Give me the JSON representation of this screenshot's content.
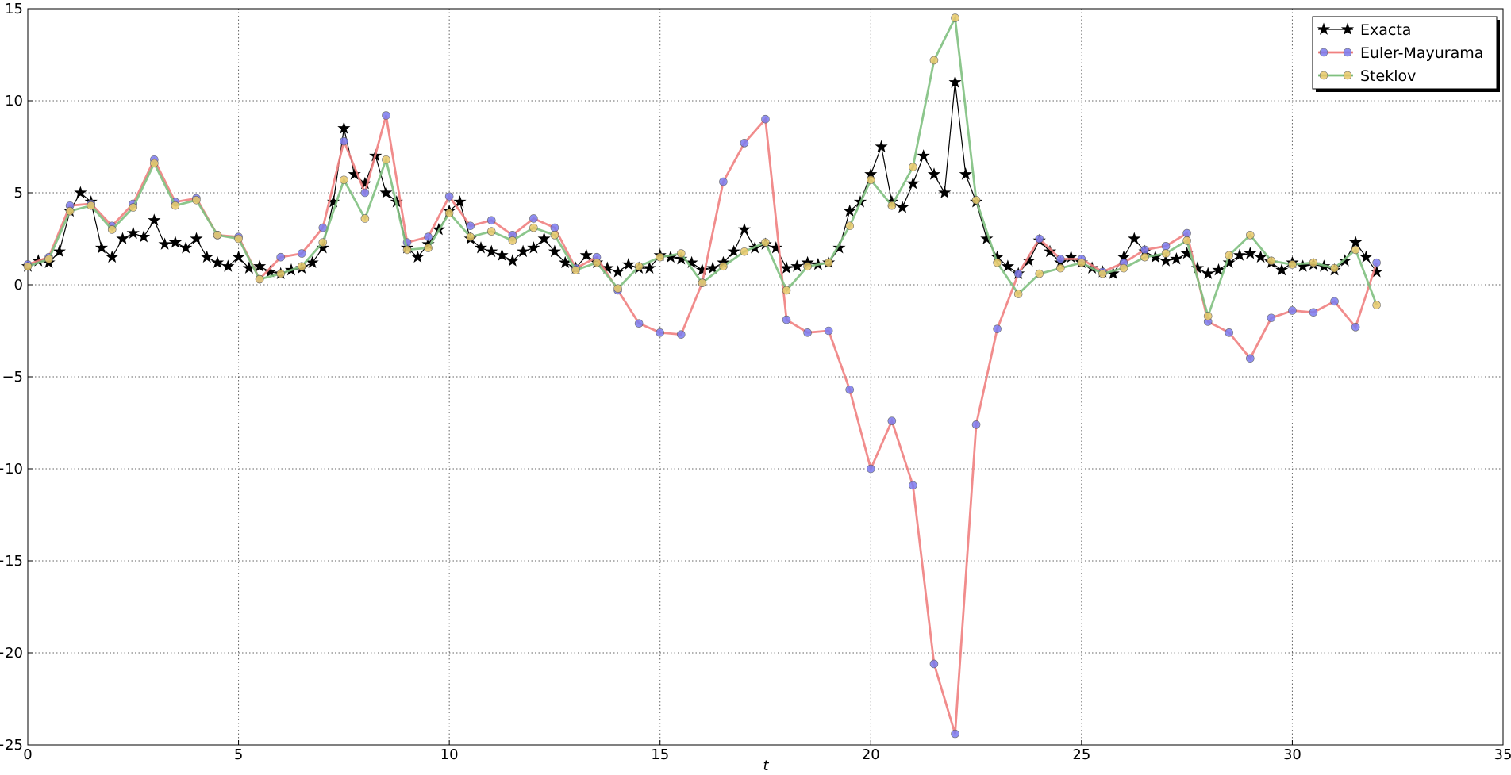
{
  "chart_data": {
    "type": "line",
    "x_label": "t",
    "xlim": [
      0,
      35
    ],
    "xticks": [
      0,
      5,
      10,
      15,
      20,
      25,
      30,
      35
    ],
    "ylim": [
      -25,
      15
    ],
    "yticks": [
      {
        "value": -25,
        "label": "−25"
      },
      {
        "value": -20,
        "label": "−20"
      },
      {
        "value": -15,
        "label": "−15"
      },
      {
        "value": -10,
        "label": "−10"
      },
      {
        "value": -5,
        "label": "−5"
      },
      0,
      5,
      10,
      15
    ],
    "grid": true,
    "legend": "upper right",
    "series": [
      {
        "name": "Exacta",
        "color": "#000000",
        "marker": "star",
        "marker_color": "#000000",
        "x": [
          0,
          0.25,
          0.5,
          0.75,
          1,
          1.25,
          1.5,
          1.75,
          2,
          2.25,
          2.5,
          2.75,
          3,
          3.25,
          3.5,
          3.75,
          4,
          4.25,
          4.5,
          4.75,
          5,
          5.25,
          5.5,
          5.75,
          6,
          6.25,
          6.5,
          6.75,
          7,
          7.25,
          7.5,
          7.75,
          8,
          8.25,
          8.5,
          8.75,
          9,
          9.25,
          9.5,
          9.75,
          10,
          10.25,
          10.5,
          10.75,
          11,
          11.25,
          11.5,
          11.75,
          12,
          12.25,
          12.5,
          12.75,
          13,
          13.25,
          13.5,
          13.75,
          14,
          14.25,
          14.5,
          14.75,
          15,
          15.25,
          15.5,
          15.75,
          16,
          16.25,
          16.5,
          16.75,
          17,
          17.25,
          17.5,
          17.75,
          18,
          18.25,
          18.5,
          18.75,
          19,
          19.25,
          19.5,
          19.75,
          20,
          20.25,
          20.5,
          20.75,
          21,
          21.25,
          21.5,
          21.75,
          22,
          22.25,
          22.5,
          22.75,
          23,
          23.25,
          23.5,
          23.75,
          24,
          24.25,
          24.5,
          24.75,
          25,
          25.25,
          25.5,
          25.75,
          26,
          26.25,
          26.5,
          26.75,
          27,
          27.25,
          27.5,
          27.75,
          28,
          28.25,
          28.5,
          28.75,
          29,
          29.25,
          29.5,
          29.75,
          30,
          30.25,
          30.5,
          30.75,
          31,
          31.25,
          31.5,
          31.75,
          32
        ],
        "values": [
          1.0,
          1.3,
          1.2,
          1.8,
          4.0,
          5.0,
          4.5,
          2.0,
          1.5,
          2.5,
          2.8,
          2.6,
          3.5,
          2.2,
          2.3,
          2.0,
          2.5,
          1.5,
          1.2,
          1.0,
          1.5,
          0.9,
          1.0,
          0.7,
          0.6,
          0.8,
          0.9,
          1.2,
          2.0,
          4.5,
          8.5,
          6.0,
          5.5,
          7.0,
          5.0,
          4.5,
          2.0,
          1.5,
          2.2,
          3.0,
          4.0,
          4.5,
          2.5,
          2.0,
          1.8,
          1.6,
          1.3,
          1.8,
          2.0,
          2.5,
          1.8,
          1.2,
          0.9,
          1.6,
          1.2,
          0.9,
          0.7,
          1.1,
          0.9,
          0.9,
          1.6,
          1.5,
          1.4,
          1.2,
          0.8,
          0.9,
          1.2,
          1.8,
          3.0,
          2.0,
          2.2,
          2.0,
          0.9,
          1.0,
          1.2,
          1.1,
          1.2,
          2.0,
          4.0,
          4.5,
          6.0,
          7.5,
          4.5,
          4.2,
          5.5,
          7.0,
          6.0,
          5.0,
          11.0,
          6.0,
          4.5,
          2.5,
          1.5,
          1.0,
          0.6,
          1.3,
          2.4,
          1.8,
          1.2,
          1.5,
          1.2,
          0.9,
          0.7,
          0.6,
          1.5,
          2.5,
          1.8,
          1.5,
          1.3,
          1.4,
          1.7,
          0.9,
          0.6,
          0.8,
          1.2,
          1.6,
          1.7,
          1.5,
          1.2,
          0.8,
          1.2,
          1.0,
          1.1,
          1.0,
          0.8,
          1.3,
          2.3,
          1.5,
          0.7
        ]
      },
      {
        "name": "Euler-Mayurama",
        "color": "#f08080",
        "marker": "circle",
        "marker_color": "#7b7bef",
        "x": [
          0,
          0.5,
          1,
          1.5,
          2,
          2.5,
          3,
          3.5,
          4,
          4.5,
          5,
          5.5,
          6,
          6.5,
          7,
          7.5,
          8,
          8.5,
          9,
          9.5,
          10,
          10.5,
          11,
          11.5,
          12,
          12.5,
          13,
          13.5,
          14,
          14.5,
          15,
          15.5,
          16,
          16.5,
          17,
          17.5,
          18,
          18.5,
          19,
          19.5,
          20,
          20.5,
          21,
          21.5,
          22,
          22.5,
          23,
          23.5,
          24,
          24.5,
          25,
          25.5,
          26,
          26.5,
          27,
          27.5,
          28,
          28.5,
          29,
          29.5,
          30,
          30.5,
          31,
          31.5,
          32
        ],
        "values": [
          1.1,
          1.5,
          4.3,
          4.4,
          3.2,
          4.4,
          6.8,
          4.5,
          4.7,
          2.7,
          2.6,
          0.3,
          1.5,
          1.7,
          3.1,
          7.8,
          5.0,
          9.2,
          2.3,
          2.6,
          4.8,
          3.2,
          3.5,
          2.7,
          3.6,
          3.1,
          0.9,
          1.5,
          -0.3,
          -2.1,
          -2.6,
          -2.7,
          0.1,
          5.6,
          7.7,
          9.0,
          -1.9,
          -2.6,
          -2.5,
          -5.7,
          -10.0,
          -7.4,
          -10.9,
          -20.6,
          -24.4,
          -7.6,
          -2.4,
          0.6,
          2.5,
          1.4,
          1.4,
          0.7,
          1.2,
          1.9,
          2.1,
          2.8,
          -2.0,
          -2.6,
          -4.0,
          -1.8,
          -1.4,
          -1.5,
          -0.9,
          -2.3,
          1.2
        ]
      },
      {
        "name": "Steklov",
        "color": "#7fc07f",
        "marker": "circle",
        "marker_color": "#e8c86a",
        "x": [
          0,
          0.5,
          1,
          1.5,
          2,
          2.5,
          3,
          3.5,
          4,
          4.5,
          5,
          5.5,
          6,
          6.5,
          7,
          7.5,
          8,
          8.5,
          9,
          9.5,
          10,
          10.5,
          11,
          11.5,
          12,
          12.5,
          13,
          13.5,
          14,
          14.5,
          15,
          15.5,
          16,
          16.5,
          17,
          17.5,
          18,
          18.5,
          19,
          19.5,
          20,
          20.5,
          21,
          21.5,
          22,
          22.5,
          23,
          23.5,
          24,
          24.5,
          25,
          25.5,
          26,
          26.5,
          27,
          27.5,
          28,
          28.5,
          29,
          29.5,
          30,
          30.5,
          31,
          31.5,
          32
        ],
        "values": [
          1.0,
          1.4,
          4.0,
          4.3,
          3.0,
          4.2,
          6.6,
          4.3,
          4.6,
          2.7,
          2.5,
          0.3,
          0.6,
          1.0,
          2.3,
          5.7,
          3.6,
          6.8,
          1.9,
          2.0,
          3.9,
          2.6,
          2.9,
          2.4,
          3.1,
          2.7,
          0.8,
          1.2,
          -0.2,
          1.0,
          1.5,
          1.7,
          0.1,
          1.0,
          1.8,
          2.3,
          -0.3,
          1.0,
          1.2,
          3.2,
          5.7,
          4.3,
          6.4,
          12.2,
          14.5,
          4.6,
          1.2,
          -0.5,
          0.6,
          0.9,
          1.2,
          0.6,
          0.9,
          1.5,
          1.7,
          2.4,
          -1.7,
          1.6,
          2.7,
          1.3,
          1.1,
          1.2,
          0.9,
          1.9,
          -1.1
        ]
      }
    ]
  }
}
